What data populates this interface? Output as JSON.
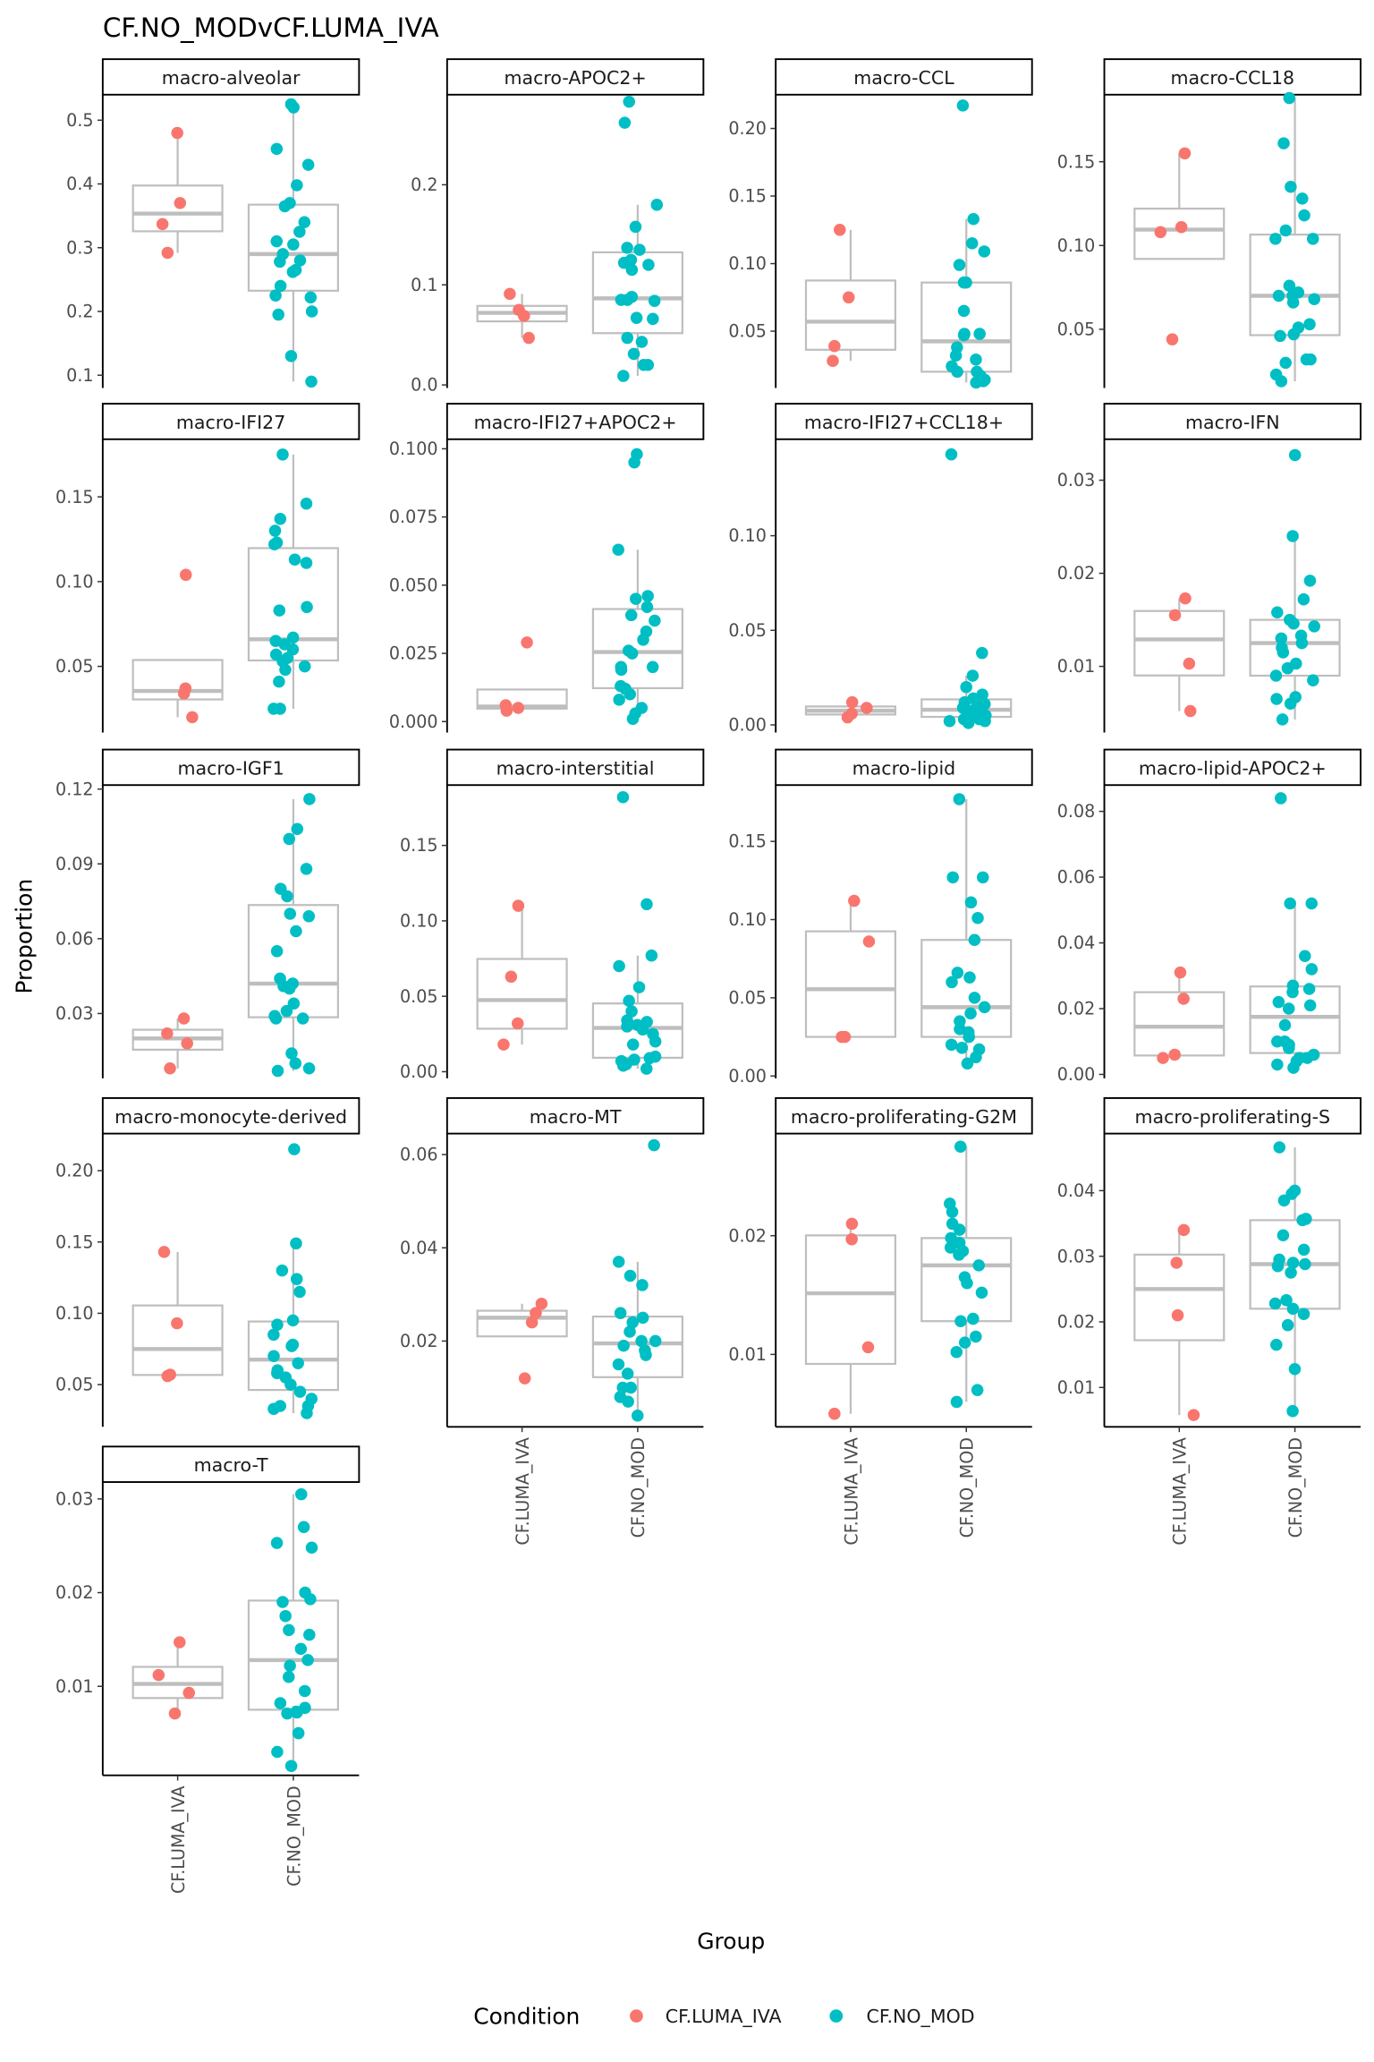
{
  "chart_data": {
    "type": "boxplot-with-jittered-points",
    "title": "CF.NO_MODvCF.LUMA_IVA",
    "xlabel": "Group",
    "ylabel": "Proportion",
    "legend": {
      "title": "Condition",
      "position": "bottom",
      "items": [
        {
          "label": "CF.LUMA_IVA",
          "color": "#F8766D"
        },
        {
          "label": "CF.NO_MOD",
          "color": "#00BFC4"
        }
      ]
    },
    "categories": [
      "CF.LUMA_IVA",
      "CF.NO_MOD"
    ],
    "box_color": "#BEBEBE",
    "grid": false,
    "panels": [
      {
        "name": "macro-alveolar",
        "ylim": [
          0.08,
          0.54
        ],
        "ticks": [
          "0.1",
          "0.2",
          "0.3",
          "0.4",
          "0.5"
        ],
        "luma": [
          0.48,
          0.37,
          0.337,
          0.292
        ],
        "nomod": [
          0.525,
          0.52,
          0.455,
          0.43,
          0.398,
          0.37,
          0.365,
          0.34,
          0.325,
          0.31,
          0.305,
          0.29,
          0.28,
          0.278,
          0.265,
          0.262,
          0.24,
          0.225,
          0.222,
          0.2,
          0.195,
          0.13,
          0.09
        ]
      },
      {
        "name": "macro-APOC2+",
        "ylim": [
          -0.003,
          0.29
        ],
        "ticks": [
          "0.0",
          "0.1",
          "0.2"
        ],
        "luma": [
          0.091,
          0.075,
          0.069,
          0.047
        ],
        "nomod": [
          0.283,
          0.262,
          0.18,
          0.158,
          0.137,
          0.135,
          0.125,
          0.122,
          0.12,
          0.115,
          0.088,
          0.085,
          0.084,
          0.085,
          0.066,
          0.067,
          0.047,
          0.043,
          0.031,
          0.02,
          0.02,
          0.009
        ]
      },
      {
        "name": "macro-CCL",
        "ylim": [
          0.008,
          0.225
        ],
        "ticks": [
          "0.05",
          "0.10",
          "0.15",
          "0.20"
        ],
        "luma": [
          0.125,
          0.075,
          0.039,
          0.028
        ],
        "nomod": [
          0.217,
          0.133,
          0.115,
          0.109,
          0.099,
          0.086,
          0.086,
          0.065,
          0.048,
          0.048,
          0.047,
          0.038,
          0.032,
          0.029,
          0.024,
          0.02,
          0.02,
          0.017,
          0.014,
          0.013,
          0.015,
          0.012
        ]
      },
      {
        "name": "macro-CCL18",
        "ylim": [
          0.015,
          0.19
        ],
        "ticks": [
          "0.05",
          "0.10",
          "0.15"
        ],
        "luma": [
          0.155,
          0.111,
          0.108,
          0.044
        ],
        "nomod": [
          0.188,
          0.161,
          0.135,
          0.128,
          0.118,
          0.109,
          0.104,
          0.104,
          0.076,
          0.072,
          0.07,
          0.07,
          0.068,
          0.066,
          0.053,
          0.051,
          0.047,
          0.046,
          0.032,
          0.032,
          0.03,
          0.023,
          0.019
        ]
      },
      {
        "name": "macro-IFI27",
        "ylim": [
          0.011,
          0.184
        ],
        "ticks": [
          "0.05",
          "0.10",
          "0.15"
        ],
        "luma": [
          0.104,
          0.037,
          0.034,
          0.02
        ],
        "nomod": [
          0.175,
          0.146,
          0.137,
          0.13,
          0.123,
          0.122,
          0.113,
          0.111,
          0.085,
          0.083,
          0.067,
          0.065,
          0.063,
          0.06,
          0.057,
          0.055,
          0.053,
          0.048,
          0.05,
          0.041,
          0.025,
          0.025
        ]
      },
      {
        "name": "macro-IFI27+APOC2+",
        "ylim": [
          -0.004,
          0.1035
        ],
        "ticks": [
          "0.000",
          "0.025",
          "0.050",
          "0.075",
          "0.100"
        ],
        "luma": [
          0.029,
          0.006,
          0.005,
          0.004
        ],
        "nomod": [
          0.098,
          0.095,
          0.063,
          0.046,
          0.045,
          0.042,
          0.039,
          0.037,
          0.033,
          0.03,
          0.026,
          0.025,
          0.02,
          0.02,
          0.019,
          0.013,
          0.012,
          0.01,
          0.008,
          0.005,
          0.003,
          0.001
        ]
      },
      {
        "name": "macro-IFI27+CCL18+",
        "ylim": [
          -0.004,
          0.151
        ],
        "ticks": [
          "0.00",
          "0.05",
          "0.10"
        ],
        "luma": [
          0.012,
          0.009,
          0.006,
          0.004
        ],
        "nomod": [
          0.143,
          0.038,
          0.026,
          0.02,
          0.016,
          0.014,
          0.012,
          0.011,
          0.01,
          0.009,
          0.008,
          0.008,
          0.007,
          0.006,
          0.005,
          0.005,
          0.004,
          0.003,
          0.003,
          0.002,
          0.002,
          0.001
        ]
      },
      {
        "name": "macro-IFN",
        "ylim": [
          0.0029,
          0.0344
        ],
        "ticks": [
          "0.01",
          "0.02",
          "0.03"
        ],
        "luma": [
          0.0173,
          0.0155,
          0.0103,
          0.0052
        ],
        "nomod": [
          0.0327,
          0.024,
          0.0192,
          0.0172,
          0.0158,
          0.015,
          0.0146,
          0.0143,
          0.0133,
          0.013,
          0.0125,
          0.012,
          0.0115,
          0.0103,
          0.0098,
          0.009,
          0.0085,
          0.0067,
          0.0065,
          0.006,
          0.0043
        ]
      },
      {
        "name": "macro-IGF1",
        "ylim": [
          0.004,
          0.1216
        ],
        "ticks": [
          "0.03",
          "0.06",
          "0.09",
          "0.12"
        ],
        "luma": [
          0.028,
          0.022,
          0.018,
          0.008
        ],
        "nomod": [
          0.116,
          0.104,
          0.1,
          0.088,
          0.08,
          0.077,
          0.07,
          0.069,
          0.063,
          0.055,
          0.044,
          0.042,
          0.041,
          0.04,
          0.034,
          0.031,
          0.029,
          0.028,
          0.028,
          0.014,
          0.01,
          0.008,
          0.007
        ]
      },
      {
        "name": "macro-interstitial",
        "ylim": [
          -0.0044,
          0.19
        ],
        "ticks": [
          "0.00",
          "0.05",
          "0.10",
          "0.15"
        ],
        "luma": [
          0.11,
          0.063,
          0.032,
          0.018
        ],
        "nomod": [
          0.182,
          0.111,
          0.077,
          0.07,
          0.056,
          0.047,
          0.04,
          0.034,
          0.033,
          0.031,
          0.03,
          0.028,
          0.025,
          0.02,
          0.018,
          0.01,
          0.009,
          0.008,
          0.007,
          0.005,
          0.004,
          0.002
        ]
      },
      {
        "name": "macro-lipid",
        "ylim": [
          -0.0015,
          0.186
        ],
        "ticks": [
          "0.00",
          "0.05",
          "0.10",
          "0.15"
        ],
        "luma": [
          0.112,
          0.086,
          0.025,
          0.025
        ],
        "nomod": [
          0.177,
          0.127,
          0.127,
          0.111,
          0.101,
          0.087,
          0.066,
          0.063,
          0.06,
          0.05,
          0.044,
          0.04,
          0.035,
          0.03,
          0.028,
          0.025,
          0.02,
          0.018,
          0.017,
          0.012,
          0.008
        ]
      },
      {
        "name": "macro-lipid-APOC2+",
        "ylim": [
          -0.0012,
          0.088
        ],
        "ticks": [
          "0.00",
          "0.02",
          "0.04",
          "0.06",
          "0.08"
        ],
        "luma": [
          0.031,
          0.023,
          0.006,
          0.005
        ],
        "nomod": [
          0.084,
          0.052,
          0.052,
          0.036,
          0.032,
          0.027,
          0.026,
          0.025,
          0.022,
          0.021,
          0.02,
          0.015,
          0.01,
          0.01,
          0.009,
          0.008,
          0.006,
          0.005,
          0.005,
          0.004,
          0.003,
          0.002
        ]
      },
      {
        "name": "macro-monocyte-derived",
        "ylim": [
          0.0204,
          0.226
        ],
        "ticks": [
          "0.05",
          "0.10",
          "0.15",
          "0.20"
        ],
        "luma": [
          0.143,
          0.093,
          0.057,
          0.056
        ],
        "nomod": [
          0.215,
          0.149,
          0.13,
          0.124,
          0.115,
          0.095,
          0.092,
          0.085,
          0.078,
          0.077,
          0.07,
          0.065,
          0.06,
          0.058,
          0.055,
          0.05,
          0.045,
          0.04,
          0.035,
          0.035,
          0.033,
          0.03
        ]
      },
      {
        "name": "macro-MT",
        "ylim": [
          0.0016,
          0.0645
        ],
        "ticks": [
          "0.02",
          "0.04",
          "0.06"
        ],
        "luma": [
          0.028,
          0.026,
          0.024,
          0.012
        ],
        "nomod": [
          0.062,
          0.037,
          0.034,
          0.032,
          0.026,
          0.025,
          0.024,
          0.022,
          0.02,
          0.02,
          0.019,
          0.018,
          0.017,
          0.015,
          0.013,
          0.01,
          0.01,
          0.008,
          0.007,
          0.004
        ]
      },
      {
        "name": "macro-proliferating-G2M",
        "ylim": [
          0.0039,
          0.0286
        ],
        "ticks": [
          "0.01",
          "0.02"
        ],
        "luma": [
          0.021,
          0.0197,
          0.0106,
          0.005
        ],
        "nomod": [
          0.0275,
          0.0227,
          0.022,
          0.021,
          0.0205,
          0.0198,
          0.0194,
          0.019,
          0.0187,
          0.0184,
          0.0175,
          0.0165,
          0.016,
          0.0152,
          0.013,
          0.0128,
          0.0115,
          0.011,
          0.0102,
          0.007,
          0.006
        ]
      },
      {
        "name": "macro-proliferating-S",
        "ylim": [
          0.004,
          0.0487
        ],
        "ticks": [
          "0.01",
          "0.02",
          "0.03",
          "0.04"
        ],
        "luma": [
          0.034,
          0.029,
          0.021,
          0.0058
        ],
        "nomod": [
          0.0466,
          0.04,
          0.0395,
          0.0385,
          0.0357,
          0.0355,
          0.0332,
          0.031,
          0.0295,
          0.029,
          0.0288,
          0.0285,
          0.0275,
          0.0233,
          0.0228,
          0.022,
          0.0212,
          0.0195,
          0.0165,
          0.0128,
          0.0064
        ]
      },
      {
        "name": "macro-T",
        "ylim": [
          0.0005,
          0.0318
        ],
        "ticks": [
          "0.01",
          "0.02",
          "0.03"
        ],
        "luma": [
          0.0147,
          0.0112,
          0.0093,
          0.0071
        ],
        "nomod": [
          0.0305,
          0.027,
          0.0253,
          0.0248,
          0.02,
          0.0193,
          0.019,
          0.0175,
          0.016,
          0.0155,
          0.014,
          0.0128,
          0.0122,
          0.011,
          0.0095,
          0.0082,
          0.0077,
          0.0073,
          0.0072,
          0.0071,
          0.005,
          0.003,
          0.0015
        ]
      }
    ]
  }
}
